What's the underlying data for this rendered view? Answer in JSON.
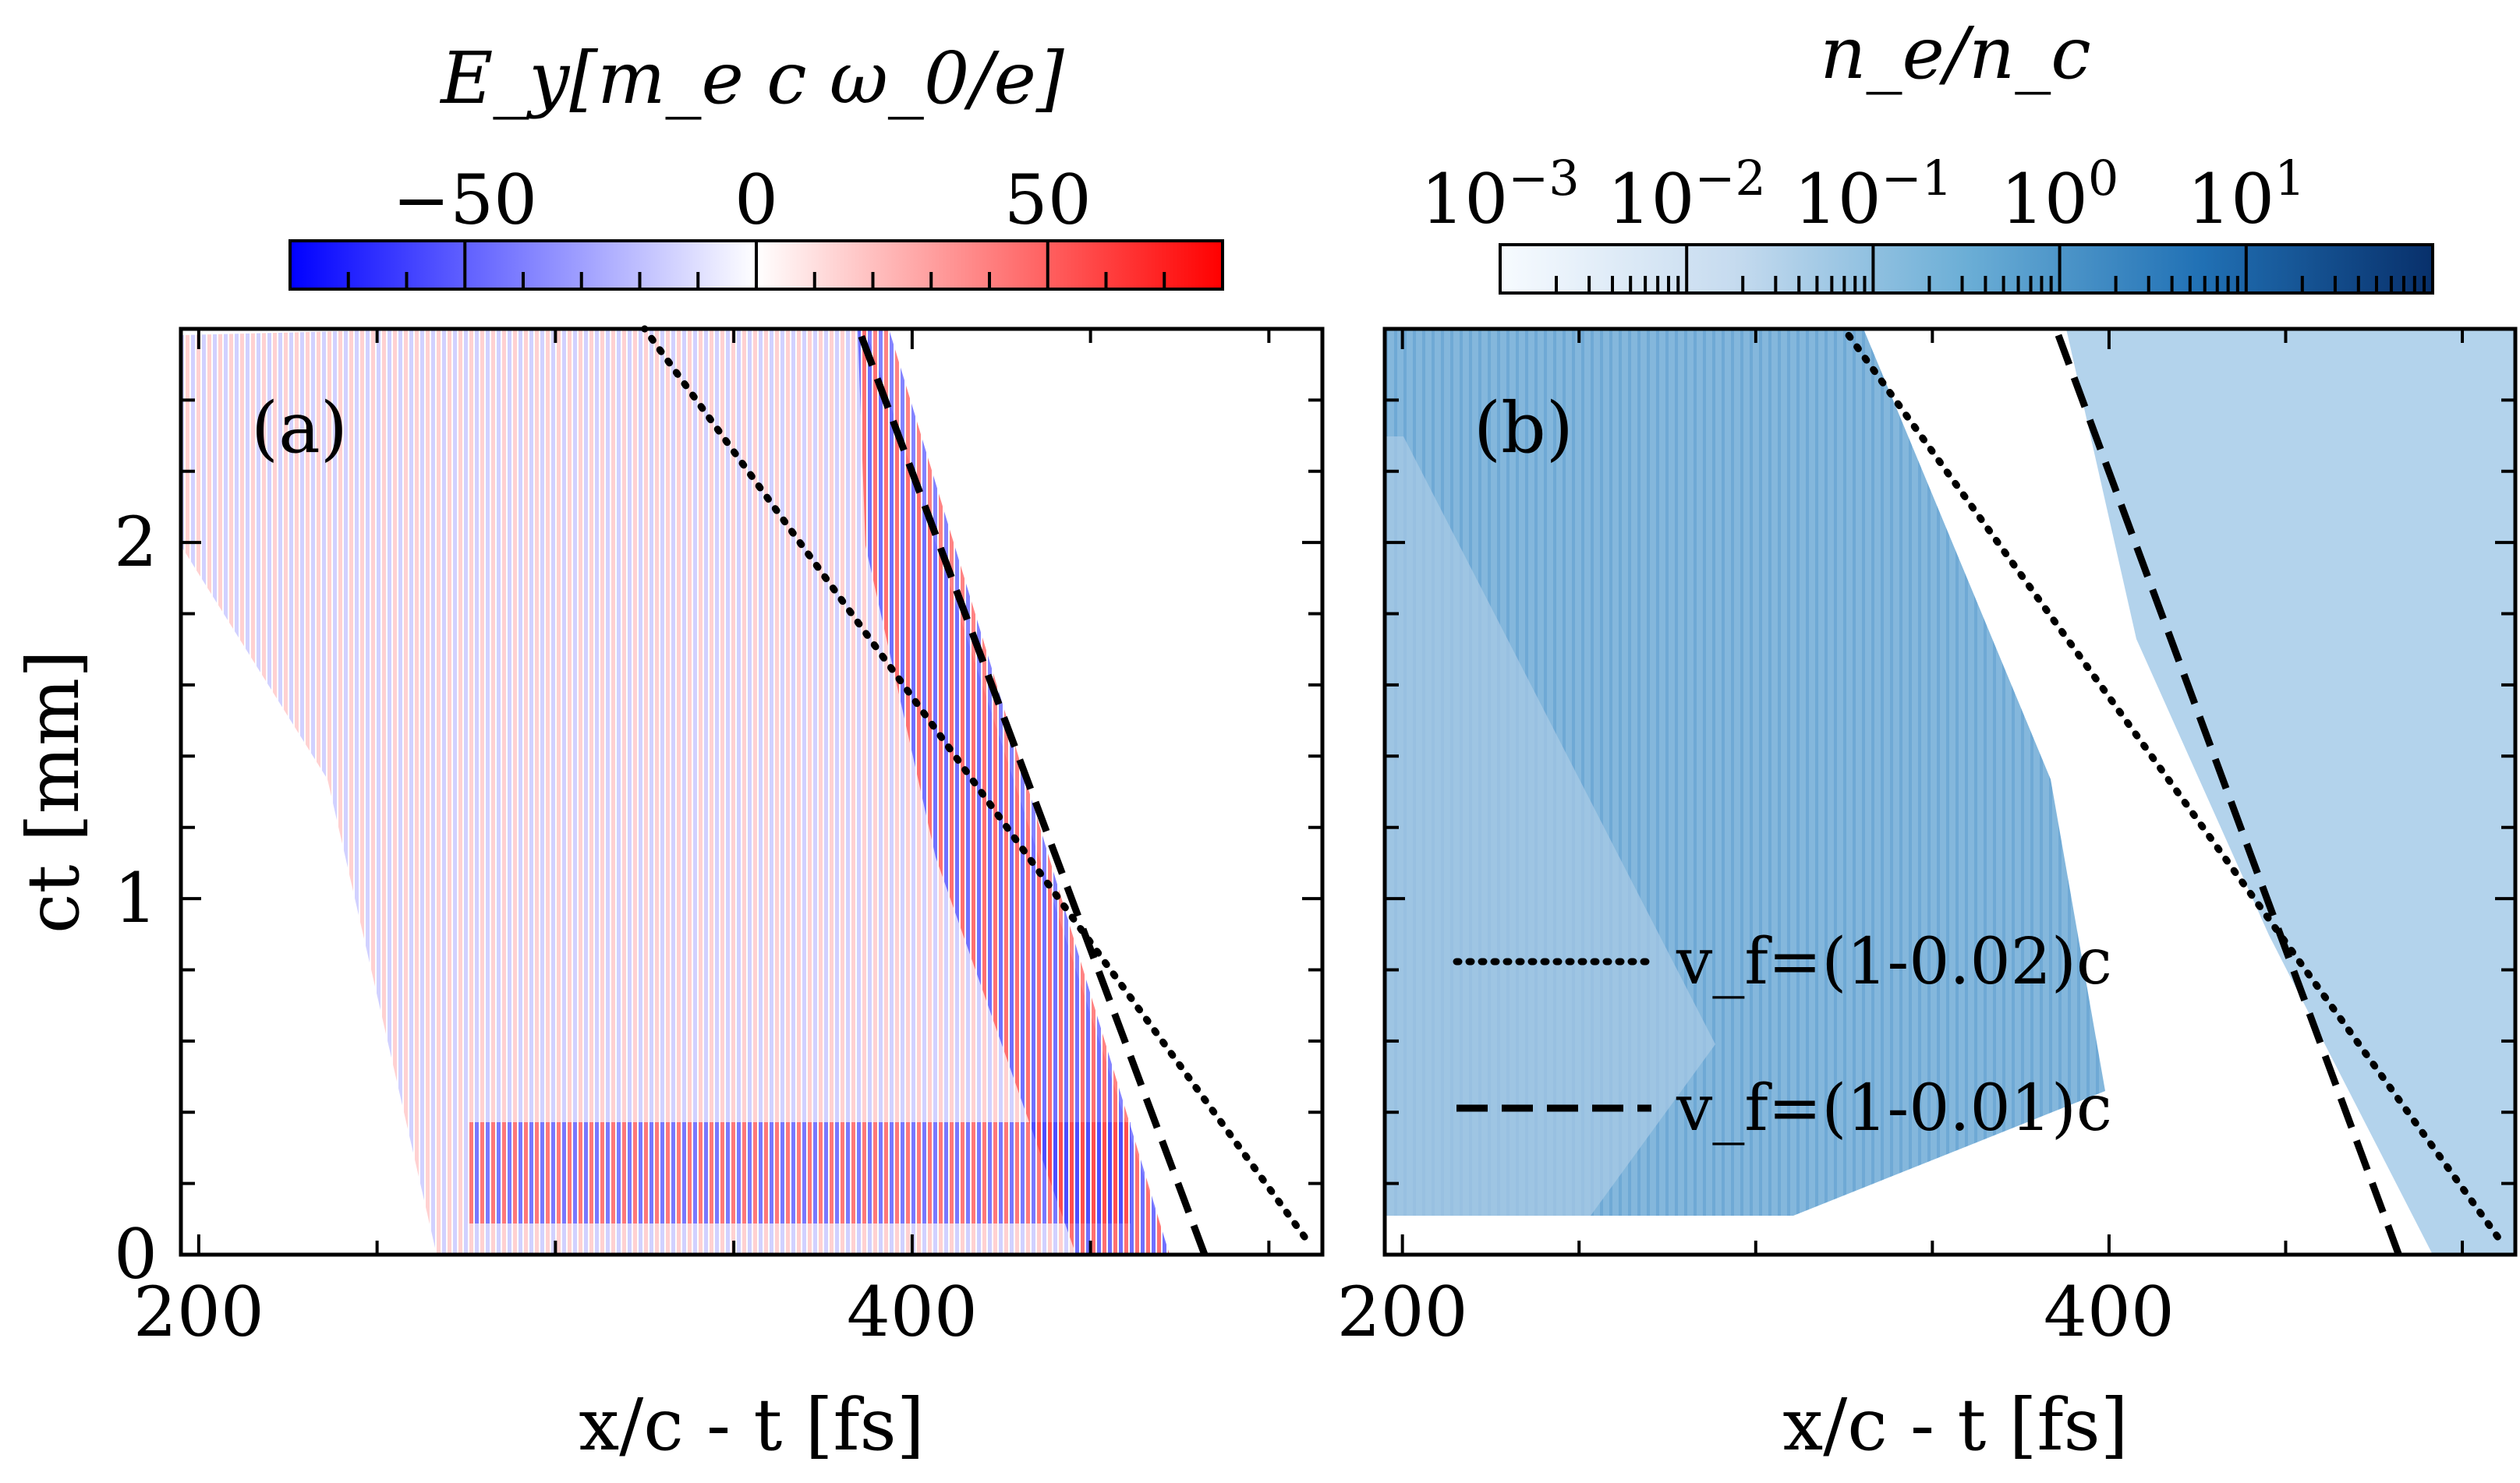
{
  "chart_data": [
    {
      "type": "heatmap",
      "panel_label": "(a)",
      "colorbar": {
        "title": "E_y[m_e c ω_0/e]",
        "scale": "linear",
        "range": [
          -80,
          80
        ],
        "colormap": [
          "#0000ff",
          "#ffffff",
          "#ff0000"
        ],
        "ticks": [
          -50,
          0,
          50
        ],
        "tick_labels": [
          "−50",
          "0",
          "50"
        ]
      },
      "xlabel": "x/c - t [fs]",
      "ylabel": "ct [mm]",
      "xlim": [
        195,
        515
      ],
      "ylim": [
        0,
        2.6
      ],
      "xticks": [
        200,
        400
      ],
      "yticks": [
        0,
        1,
        2
      ],
      "lines": [
        {
          "style": "dotted",
          "x": [
            510,
            325
          ],
          "y": [
            0.05,
            2.6
          ]
        },
        {
          "style": "dashed",
          "x": [
            482,
            385
          ],
          "y": [
            0.0,
            2.6
          ]
        }
      ]
    },
    {
      "type": "heatmap",
      "panel_label": "(b)",
      "colorbar": {
        "title": "n_e/n_c",
        "scale": "log",
        "range": [
          0.001,
          100
        ],
        "colormap": [
          "#f7fbff",
          "#08306b"
        ],
        "ticks": [
          0.001,
          0.01,
          0.1,
          1,
          10
        ],
        "tick_labels": [
          {
            "base": "10",
            "exp": "−3"
          },
          {
            "base": "10",
            "exp": "−2"
          },
          {
            "base": "10",
            "exp": "−1"
          },
          {
            "base": "10",
            "exp": "0"
          },
          {
            "base": "10",
            "exp": "1"
          }
        ]
      },
      "xlabel": "x/c - t [fs]",
      "xlim": [
        195,
        515
      ],
      "ylim": [
        0,
        2.6
      ],
      "xticks": [
        200,
        400
      ],
      "yticks": [
        0,
        1,
        2
      ],
      "lines": [
        {
          "style": "dotted",
          "x": [
            510,
            325
          ],
          "y": [
            0.05,
            2.6
          ]
        },
        {
          "style": "dashed",
          "x": [
            482,
            385
          ],
          "y": [
            0.0,
            2.6
          ]
        }
      ],
      "legend": {
        "placement": "lower-left",
        "entries": [
          {
            "style": "dotted",
            "label": "v_f=(1-0.02)c"
          },
          {
            "style": "dashed",
            "label": "v_f=(1-0.01)c"
          }
        ]
      }
    }
  ]
}
